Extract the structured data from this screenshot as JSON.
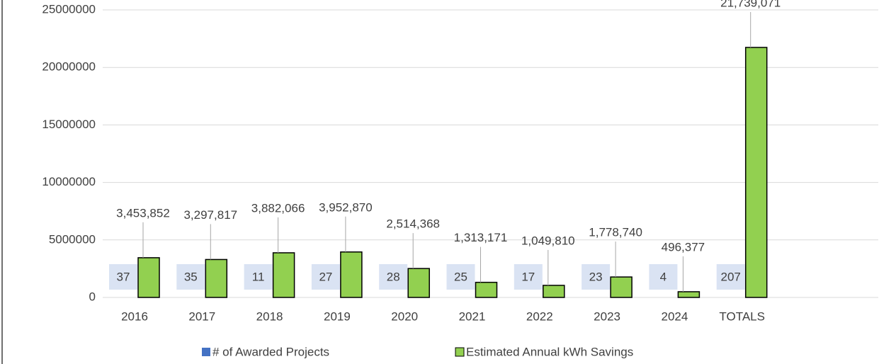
{
  "chart_data": {
    "type": "bar",
    "categories": [
      "2016",
      "2017",
      "2018",
      "2019",
      "2020",
      "2021",
      "2022",
      "2023",
      "2024",
      "TOTALS"
    ],
    "series": [
      {
        "name": "# of Awarded Projects",
        "color": "#4472c4",
        "values": [
          37,
          35,
          11,
          27,
          28,
          25,
          17,
          23,
          4,
          207
        ]
      },
      {
        "name": "Estimated Annual kWh Savings",
        "color": "#92d050",
        "values": [
          3453852,
          3297817,
          3882066,
          3952870,
          2514368,
          1313171,
          1049810,
          1778740,
          496377,
          21739071
        ],
        "value_labels": [
          "3,453,852",
          "3,297,817",
          "3,882,066",
          "3,952,870",
          "2,514,368",
          "1,313,171",
          "1,049,810",
          "1,778,740",
          "496,377",
          "21,739,071"
        ]
      }
    ],
    "ylim": [
      0,
      25000000
    ],
    "yticks": [
      0,
      5000000,
      10000000,
      15000000,
      20000000,
      25000000
    ],
    "grid": true,
    "legend": "bottom"
  }
}
